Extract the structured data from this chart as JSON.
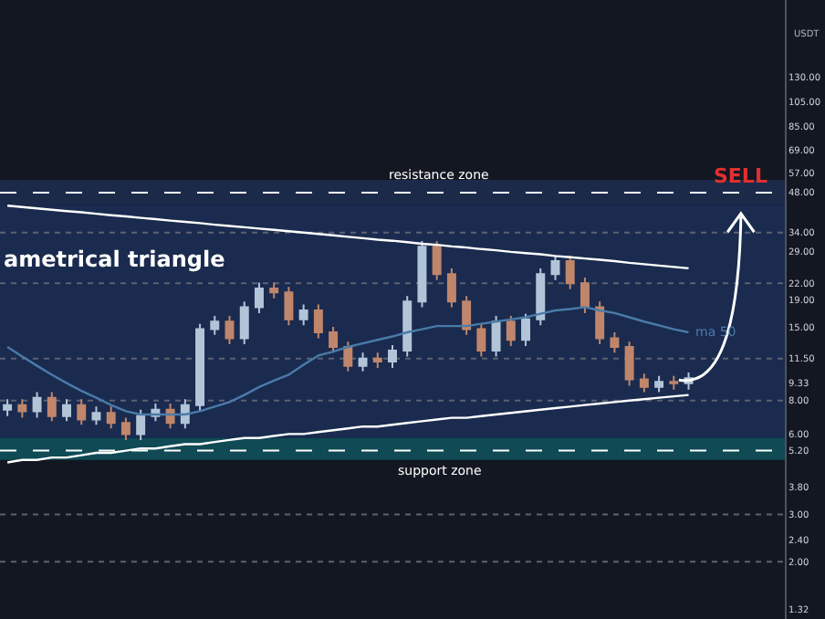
{
  "chart_data": {
    "type": "candlestick",
    "ylabel": "USDT",
    "log": true,
    "grid": false,
    "legend": false,
    "categories": [
      null,
      null,
      null,
      null,
      null,
      null,
      null,
      null,
      null,
      null,
      null,
      null,
      null,
      null,
      null,
      null,
      null,
      null,
      null,
      null,
      null,
      null,
      null,
      null,
      null,
      null,
      null,
      null,
      null,
      null,
      null,
      null,
      null,
      null,
      null,
      null,
      null,
      null,
      null,
      null,
      null,
      null,
      null,
      null,
      null,
      null,
      null
    ],
    "ohlc": [
      [
        7.4,
        8.1,
        7.0,
        7.7
      ],
      [
        7.7,
        8.1,
        6.9,
        7.3
      ],
      [
        7.3,
        8.6,
        6.9,
        8.2
      ],
      [
        8.2,
        8.6,
        6.7,
        7.0
      ],
      [
        7.0,
        8.1,
        6.7,
        7.7
      ],
      [
        7.7,
        8.1,
        6.5,
        6.8
      ],
      [
        6.8,
        7.6,
        6.5,
        7.2
      ],
      [
        7.2,
        7.6,
        6.3,
        6.6
      ],
      [
        6.6,
        6.9,
        5.7,
        6.0
      ],
      [
        6.0,
        7.4,
        5.7,
        7.0
      ],
      [
        7.0,
        7.8,
        6.7,
        7.4
      ],
      [
        7.4,
        7.8,
        6.3,
        6.6
      ],
      [
        6.6,
        8.1,
        6.3,
        7.7
      ],
      [
        7.7,
        15.5,
        7.3,
        14.8
      ],
      [
        14.8,
        16.6,
        14.1,
        15.8
      ],
      [
        15.8,
        16.6,
        13.0,
        13.7
      ],
      [
        13.7,
        18.8,
        13.0,
        17.9
      ],
      [
        17.9,
        22.1,
        17.0,
        21.0
      ],
      [
        21.0,
        22.1,
        19.3,
        20.3
      ],
      [
        20.3,
        21.3,
        15.3,
        16.1
      ],
      [
        16.1,
        18.3,
        15.3,
        17.4
      ],
      [
        17.4,
        18.3,
        13.7,
        14.4
      ],
      [
        14.4,
        15.1,
        12.1,
        12.7
      ],
      [
        12.7,
        13.3,
        10.3,
        10.8
      ],
      [
        10.8,
        12.1,
        10.3,
        11.5
      ],
      [
        11.5,
        12.1,
        10.6,
        11.2
      ],
      [
        11.2,
        12.9,
        10.6,
        12.3
      ],
      [
        12.3,
        19.7,
        11.7,
        18.8
      ],
      [
        18.8,
        31.6,
        17.9,
        30.1
      ],
      [
        30.1,
        31.6,
        22.6,
        23.8
      ],
      [
        23.8,
        25.0,
        17.9,
        18.8
      ],
      [
        18.8,
        19.7,
        14.1,
        14.8
      ],
      [
        14.8,
        15.5,
        11.7,
        12.3
      ],
      [
        12.3,
        16.6,
        11.7,
        15.8
      ],
      [
        15.8,
        16.6,
        12.8,
        13.5
      ],
      [
        13.5,
        16.9,
        12.8,
        16.1
      ],
      [
        16.1,
        25.0,
        15.3,
        23.8
      ],
      [
        23.8,
        27.9,
        22.6,
        26.6
      ],
      [
        26.6,
        27.9,
        20.9,
        22.0
      ],
      [
        22.0,
        23.1,
        17.0,
        17.9
      ],
      [
        17.9,
        18.8,
        13.0,
        13.7
      ],
      [
        13.7,
        14.4,
        12.1,
        12.7
      ],
      [
        12.7,
        13.3,
        9.1,
        9.6
      ],
      [
        9.6,
        10.1,
        8.6,
        9.0
      ],
      [
        9.0,
        9.9,
        8.6,
        9.4
      ],
      [
        9.4,
        9.9,
        8.8,
        9.3
      ],
      [
        9.3,
        10.2,
        8.8,
        9.7
      ]
    ],
    "colors": [
      "#b2c5d8",
      "#c0866b",
      "#b2c5d8",
      "#c0866b",
      "#b2c5d8",
      "#c0866b",
      "#b2c5d8",
      "#c0866b",
      "#c0866b",
      "#b2c5d8",
      "#b2c5d8",
      "#c0866b",
      "#b2c5d8",
      "#b2c5d8",
      "#b2c5d8",
      "#c0866b",
      "#b2c5d8",
      "#b2c5d8",
      "#c0866b",
      "#c0866b",
      "#b2c5d8",
      "#c0866b",
      "#c0866b",
      "#c0866b",
      "#b2c5d8",
      "#c0866b",
      "#b2c5d8",
      "#b2c5d8",
      "#b2c5d8",
      "#c0866b",
      "#c0866b",
      "#c0866b",
      "#c0866b",
      "#b2c5d8",
      "#c0866b",
      "#b2c5d8",
      "#b2c5d8",
      "#b2c5d8",
      "#c0866b",
      "#c0866b",
      "#c0866b",
      "#c0866b",
      "#c0866b",
      "#c0866b",
      "#b2c5d8",
      "#c0866b",
      "#b2c5d8"
    ],
    "series": [
      {
        "type": "line",
        "name": "ma 50",
        "color": "#4a7ba8",
        "values": [
          12.7,
          11.7,
          10.8,
          10.0,
          9.3,
          8.7,
          8.2,
          7.7,
          7.3,
          7.1,
          7.1,
          7.1,
          7.1,
          7.3,
          7.6,
          7.9,
          8.4,
          9.0,
          9.5,
          10.0,
          10.9,
          11.8,
          12.2,
          12.7,
          13.1,
          13.5,
          13.9,
          14.4,
          14.8,
          15.2,
          15.2,
          15.2,
          15.5,
          15.8,
          16.1,
          16.4,
          16.9,
          17.4,
          17.6,
          17.9,
          17.4,
          17.0,
          16.4,
          15.8,
          15.3,
          14.8,
          14.4
        ]
      },
      {
        "type": "line",
        "color": "#ffffff",
        "values": [
          42.9,
          42.4,
          41.9,
          41.4,
          40.9,
          40.5,
          40.0,
          39.5,
          39.1,
          38.6,
          38.2,
          37.7,
          37.3,
          36.9,
          36.4,
          36.0,
          35.6,
          35.2,
          34.8,
          34.4,
          34.0,
          33.6,
          33.2,
          32.8,
          32.4,
          32.0,
          31.7,
          31.3,
          30.9,
          30.6,
          30.2,
          29.9,
          29.5,
          29.2,
          28.8,
          28.5,
          28.2,
          27.8,
          27.5,
          27.2,
          26.9,
          26.6,
          26.2,
          25.9,
          25.6,
          25.3,
          25.0
        ]
      },
      {
        "type": "line",
        "color": "#ffffff",
        "values": [
          4.7,
          4.8,
          4.8,
          4.9,
          4.9,
          5.0,
          5.1,
          5.1,
          5.2,
          5.3,
          5.3,
          5.4,
          5.5,
          5.5,
          5.6,
          5.7,
          5.8,
          5.8,
          5.9,
          6.0,
          6.0,
          6.1,
          6.2,
          6.3,
          6.4,
          6.4,
          6.5,
          6.6,
          6.7,
          6.8,
          6.9,
          6.9,
          7.0,
          7.1,
          7.2,
          7.3,
          7.4,
          7.5,
          7.6,
          7.7,
          7.8,
          7.9,
          8.0,
          8.1,
          8.2,
          8.3,
          8.4
        ]
      }
    ],
    "ylim": [
      1.22,
      252
    ],
    "yticks": [
      {
        "value": 130,
        "label": "130.00"
      },
      {
        "value": 105,
        "label": "105.00"
      },
      {
        "value": 85,
        "label": "85.00"
      },
      {
        "value": 69,
        "label": "69.00"
      },
      {
        "value": 57,
        "label": "57.00"
      },
      {
        "value": 48,
        "label": "48.00"
      },
      {
        "value": 34,
        "label": "34.00"
      },
      {
        "value": 29,
        "label": "29.00"
      },
      {
        "value": 22,
        "label": "22.00"
      },
      {
        "value": 19,
        "label": "19.00"
      },
      {
        "value": 15,
        "label": "15.00"
      },
      {
        "value": 11.5,
        "label": "11.50"
      },
      {
        "value": 9.33,
        "label": "9.33"
      },
      {
        "value": 8,
        "label": "8.00"
      },
      {
        "value": 6,
        "label": "6.00"
      },
      {
        "value": 5.2,
        "label": "5.20"
      },
      {
        "value": 3.8,
        "label": "3.80"
      },
      {
        "value": 3,
        "label": "3.00"
      },
      {
        "value": 2.4,
        "label": "2.40"
      },
      {
        "value": 2,
        "label": "2.00"
      },
      {
        "value": 1.32,
        "label": "1.32"
      }
    ],
    "bands": [
      {
        "axis": "y",
        "from": 5.8,
        "to": 43.2,
        "color": "#1a2b4f"
      },
      {
        "axis": "y",
        "from": 43.2,
        "to": 53.5,
        "color": "#1c2a4a"
      },
      {
        "axis": "y",
        "from": 4.8,
        "to": 5.8,
        "color": "#0f4a55"
      }
    ],
    "ref_lines": [
      {
        "axis": "y",
        "value": 48,
        "label": "resistance zone",
        "color": "#ffffff",
        "line_style": "dashed"
      },
      {
        "axis": "y",
        "value": 5.2,
        "label": "support zone",
        "color": "#ffffff",
        "line_style": "dashed"
      },
      {
        "axis": "y",
        "value": 34,
        "color": "#5d6272",
        "line_style": "dotted"
      },
      {
        "axis": "y",
        "value": 22,
        "color": "#5d6272",
        "line_style": "dotted"
      },
      {
        "axis": "y",
        "value": 11.5,
        "color": "#5d6272",
        "line_style": "dotted"
      },
      {
        "axis": "y",
        "value": 8,
        "color": "#5d6272",
        "line_style": "dotted"
      },
      {
        "axis": "y",
        "value": 3,
        "color": "#5d6272",
        "line_style": "dotted"
      },
      {
        "axis": "y",
        "value": 2,
        "color": "#5d6272",
        "line_style": "dotted"
      }
    ],
    "annotations": [
      "SELL",
      "ametrical triangle"
    ]
  }
}
